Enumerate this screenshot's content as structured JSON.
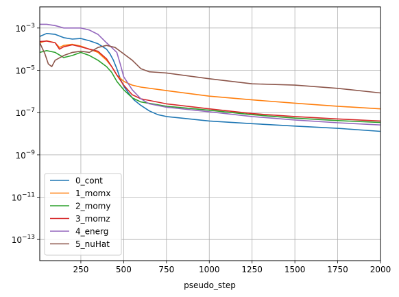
{
  "chart_data": {
    "type": "line",
    "title": "",
    "xlabel": "pseudo_step",
    "ylabel": "",
    "xlim": [
      10,
      2000
    ],
    "ylim": [
      1e-14,
      0.01
    ],
    "yscale": "log",
    "grid": true,
    "legend": "lower-left",
    "x_ticks": [
      250,
      500,
      750,
      1000,
      1250,
      1500,
      1750,
      2000
    ],
    "x_tick_labels": [
      "250",
      "500",
      "750",
      "1000",
      "1250",
      "1500",
      "1750",
      "2000"
    ],
    "y_ticks": [
      1e-13,
      1e-11,
      1e-09,
      1e-07,
      1e-05,
      0.001
    ],
    "y_tick_labels": [
      {
        "base": "10",
        "exp": "−13"
      },
      {
        "base": "10",
        "exp": "−11"
      },
      {
        "base": "10",
        "exp": "−9"
      },
      {
        "base": "10",
        "exp": "−7"
      },
      {
        "base": "10",
        "exp": "−5"
      },
      {
        "base": "10",
        "exp": "−3"
      }
    ],
    "series": [
      {
        "name": "0_cont",
        "color": "#1f77b4",
        "points": [
          [
            10,
            0.0004
          ],
          [
            50,
            0.00055
          ],
          [
            100,
            0.0005
          ],
          [
            150,
            0.00035
          ],
          [
            200,
            0.0003
          ],
          [
            250,
            0.00032
          ],
          [
            300,
            0.00025
          ],
          [
            350,
            0.00018
          ],
          [
            400,
            0.0001
          ],
          [
            420,
            6e-05
          ],
          [
            440,
            3e-05
          ],
          [
            460,
            1.2e-05
          ],
          [
            480,
            4e-06
          ],
          [
            500,
            1.8e-06
          ],
          [
            530,
            8e-07
          ],
          [
            560,
            4e-07
          ],
          [
            600,
            2.2e-07
          ],
          [
            650,
            1.2e-07
          ],
          [
            700,
            8e-08
          ],
          [
            750,
            6.5e-08
          ],
          [
            1000,
            4e-08
          ],
          [
            1250,
            3e-08
          ],
          [
            1500,
            2.3e-08
          ],
          [
            1750,
            1.8e-08
          ],
          [
            2000,
            1.3e-08
          ]
        ]
      },
      {
        "name": "1_momx",
        "color": "#ff7f0e",
        "points": [
          [
            10,
            0.0002
          ],
          [
            50,
            0.00025
          ],
          [
            100,
            0.0002
          ],
          [
            125,
            0.00012
          ],
          [
            150,
            0.00015
          ],
          [
            200,
            0.00017
          ],
          [
            250,
            0.00014
          ],
          [
            300,
            0.0001
          ],
          [
            350,
            7e-05
          ],
          [
            400,
            3e-05
          ],
          [
            430,
            1.5e-05
          ],
          [
            460,
            6e-06
          ],
          [
            500,
            3e-06
          ],
          [
            550,
            2e-06
          ],
          [
            600,
            1.6e-06
          ],
          [
            750,
            1.1e-06
          ],
          [
            1000,
            6e-07
          ],
          [
            1250,
            4e-07
          ],
          [
            1500,
            2.8e-07
          ],
          [
            1750,
            2e-07
          ],
          [
            2000,
            1.5e-07
          ]
        ]
      },
      {
        "name": "2_momy",
        "color": "#2ca02c",
        "points": [
          [
            10,
            7e-05
          ],
          [
            50,
            8.5e-05
          ],
          [
            100,
            7e-05
          ],
          [
            150,
            4e-05
          ],
          [
            200,
            5e-05
          ],
          [
            250,
            7e-05
          ],
          [
            300,
            5e-05
          ],
          [
            350,
            3e-05
          ],
          [
            400,
            1.5e-05
          ],
          [
            430,
            8e-06
          ],
          [
            460,
            3e-06
          ],
          [
            500,
            1.2e-06
          ],
          [
            550,
            5e-07
          ],
          [
            600,
            3.2e-07
          ],
          [
            750,
            2e-07
          ],
          [
            1000,
            1.3e-07
          ],
          [
            1250,
            8e-08
          ],
          [
            1500,
            5.5e-08
          ],
          [
            1750,
            4.2e-08
          ],
          [
            2000,
            3.4e-08
          ]
        ]
      },
      {
        "name": "3_momz",
        "color": "#d62728",
        "points": [
          [
            10,
            0.00023
          ],
          [
            50,
            0.00024
          ],
          [
            100,
            0.0002
          ],
          [
            125,
            0.0001
          ],
          [
            150,
            0.00013
          ],
          [
            200,
            0.00016
          ],
          [
            250,
            0.00013
          ],
          [
            300,
            0.0001
          ],
          [
            350,
            8e-05
          ],
          [
            400,
            3.5e-05
          ],
          [
            430,
            1.5e-05
          ],
          [
            460,
            6e-06
          ],
          [
            500,
            2e-06
          ],
          [
            550,
            7e-07
          ],
          [
            600,
            4.5e-07
          ],
          [
            750,
            2.6e-07
          ],
          [
            1000,
            1.5e-07
          ],
          [
            1250,
            9e-08
          ],
          [
            1500,
            6.5e-08
          ],
          [
            1750,
            5e-08
          ],
          [
            2000,
            4e-08
          ]
        ]
      },
      {
        "name": "4_energ",
        "color": "#9467bd",
        "points": [
          [
            10,
            0.0015
          ],
          [
            50,
            0.0015
          ],
          [
            100,
            0.0013
          ],
          [
            150,
            0.001
          ],
          [
            200,
            0.001
          ],
          [
            250,
            0.001
          ],
          [
            300,
            0.0008
          ],
          [
            350,
            0.0005
          ],
          [
            400,
            0.0002
          ],
          [
            430,
            0.00012
          ],
          [
            460,
            7e-05
          ],
          [
            480,
            2e-05
          ],
          [
            500,
            5e-06
          ],
          [
            550,
            1.2e-06
          ],
          [
            600,
            4.5e-07
          ],
          [
            650,
            2.6e-07
          ],
          [
            750,
            1.8e-07
          ],
          [
            1000,
            1.1e-07
          ],
          [
            1250,
            6.5e-08
          ],
          [
            1500,
            4.5e-08
          ],
          [
            1750,
            3.3e-08
          ],
          [
            2000,
            2.6e-08
          ]
        ]
      },
      {
        "name": "5_nuHat",
        "color": "#8c564b",
        "points": [
          [
            10,
            0.0002
          ],
          [
            40,
            6e-05
          ],
          [
            60,
            2e-05
          ],
          [
            80,
            1.5e-05
          ],
          [
            100,
            3e-05
          ],
          [
            150,
            5e-05
          ],
          [
            200,
            7e-05
          ],
          [
            250,
            8e-05
          ],
          [
            300,
            7e-05
          ],
          [
            350,
            0.00012
          ],
          [
            400,
            0.00015
          ],
          [
            450,
            0.00012
          ],
          [
            500,
            6e-05
          ],
          [
            550,
            3e-05
          ],
          [
            600,
            1.2e-05
          ],
          [
            650,
            8.5e-06
          ],
          [
            700,
            8e-06
          ],
          [
            750,
            7.5e-06
          ],
          [
            1000,
            4e-06
          ],
          [
            1250,
            2.3e-06
          ],
          [
            1500,
            2e-06
          ],
          [
            1750,
            1.4e-06
          ],
          [
            2000,
            8.5e-07
          ]
        ]
      }
    ]
  }
}
